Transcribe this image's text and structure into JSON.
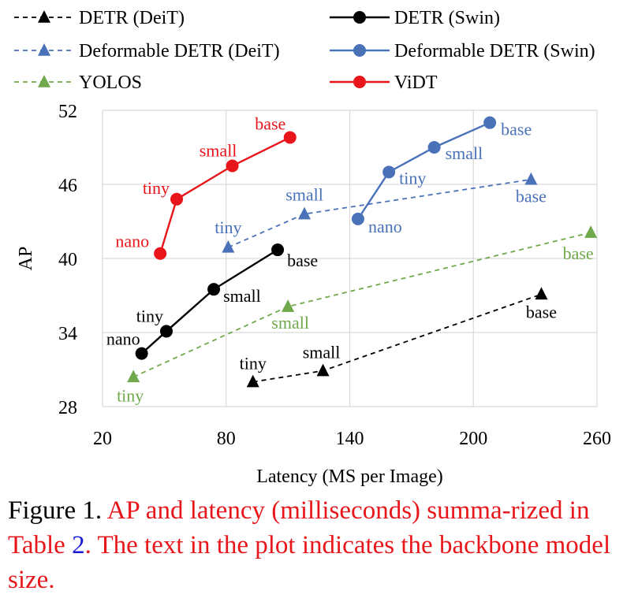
{
  "chart_data": {
    "type": "line",
    "xlabel": "Latency (MS per Image)",
    "ylabel": "AP",
    "xlim": [
      20,
      260
    ],
    "ylim": [
      28,
      52
    ],
    "xticks": [
      20,
      80,
      140,
      200,
      260
    ],
    "yticks": [
      28,
      34,
      40,
      46,
      52
    ],
    "grid": true,
    "legend_position": "top",
    "series": [
      {
        "name": "DETR (DeiT)",
        "color": "#000000",
        "line": "dashed",
        "marker": "triangle",
        "points": [
          {
            "x": 93,
            "y": 30.0,
            "label": "tiny"
          },
          {
            "x": 127,
            "y": 30.9,
            "label": "small"
          },
          {
            "x": 233,
            "y": 37.1,
            "label": "base"
          }
        ]
      },
      {
        "name": "DETR (Swin)",
        "color": "#000000",
        "line": "solid",
        "marker": "circle",
        "points": [
          {
            "x": 39,
            "y": 32.3,
            "label": "nano"
          },
          {
            "x": 51,
            "y": 34.1,
            "label": "tiny"
          },
          {
            "x": 74,
            "y": 37.5,
            "label": "small"
          },
          {
            "x": 105,
            "y": 40.7,
            "label": "base"
          }
        ]
      },
      {
        "name": "Deformable DETR (DeiT)",
        "color": "#4a72b8",
        "line": "dashed",
        "marker": "triangle",
        "points": [
          {
            "x": 81,
            "y": 40.9,
            "label": "tiny"
          },
          {
            "x": 118,
            "y": 43.6,
            "label": "small"
          },
          {
            "x": 228,
            "y": 46.4,
            "label": "base"
          }
        ]
      },
      {
        "name": "Deformable DETR (Swin)",
        "color": "#4a72b8",
        "line": "solid",
        "marker": "circle",
        "points": [
          {
            "x": 144,
            "y": 43.2,
            "label": "nano"
          },
          {
            "x": 159,
            "y": 47.0,
            "label": "tiny"
          },
          {
            "x": 181,
            "y": 49.0,
            "label": "small"
          },
          {
            "x": 208,
            "y": 51.0,
            "label": "base"
          }
        ]
      },
      {
        "name": "YOLOS",
        "color": "#70a84c",
        "line": "dashed",
        "marker": "triangle",
        "points": [
          {
            "x": 35,
            "y": 30.4,
            "label": "tiny"
          },
          {
            "x": 110,
            "y": 36.1,
            "label": "small"
          },
          {
            "x": 257,
            "y": 42.1,
            "label": "base"
          }
        ]
      },
      {
        "name": "ViDT",
        "color": "#e8161b",
        "line": "solid",
        "marker": "circle",
        "points": [
          {
            "x": 48,
            "y": 40.4,
            "label": "nano"
          },
          {
            "x": 56,
            "y": 44.8,
            "label": "tiny"
          },
          {
            "x": 83,
            "y": 47.5,
            "label": "small"
          },
          {
            "x": 111,
            "y": 49.8,
            "label": "base"
          }
        ]
      }
    ]
  },
  "caption": {
    "prefix": "Figure 1. ",
    "red_text_1": "AP and latency (milliseconds) summa-rized in Table ",
    "table_ref": "2",
    "red_text_2": ". The text in the plot indicates the backbone model size."
  }
}
